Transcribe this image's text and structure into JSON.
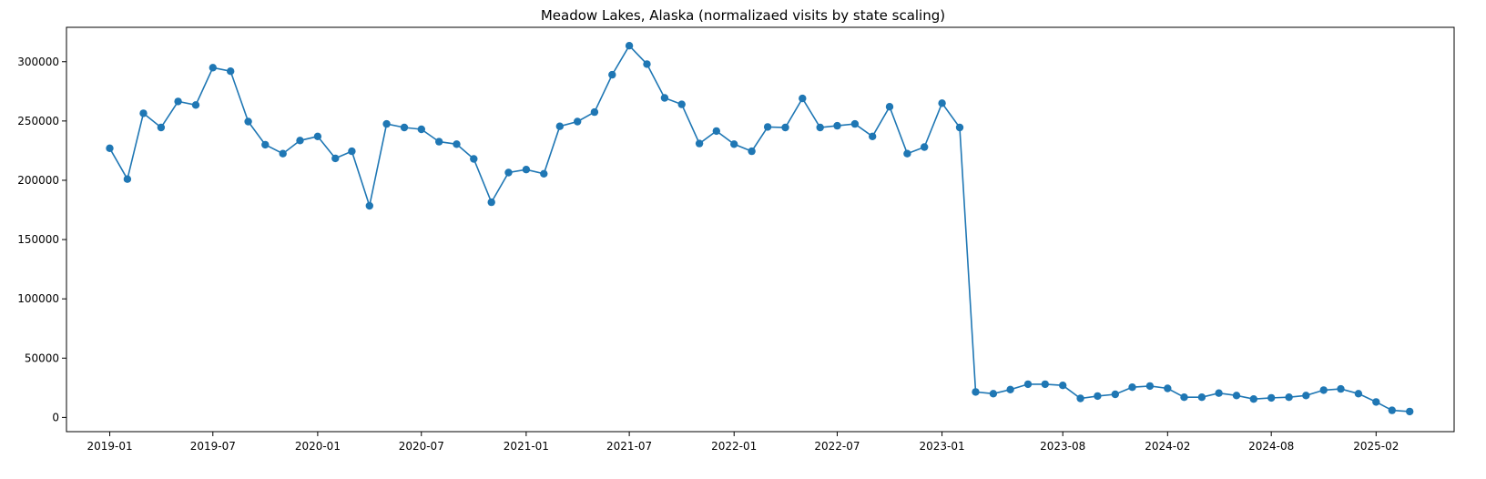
{
  "chart_data": {
    "type": "line",
    "title": "Meadow Lakes, Alaska (normalizaed visits by state scaling)",
    "xlabel": "",
    "ylabel": "",
    "grid": false,
    "legend": "none",
    "color": "#1f77b4",
    "x_ticks": [
      "2019-01",
      "2019-07",
      "2020-01",
      "2020-07",
      "2021-01",
      "2021-07",
      "2022-01",
      "2022-07",
      "2023-01",
      "2023-08",
      "2024-02",
      "2024-08",
      "2025-02"
    ],
    "y_ticks": [
      0,
      50000,
      100000,
      150000,
      200000,
      250000,
      300000
    ],
    "xlim": [
      "2018-10-17",
      "2025-06-18"
    ],
    "ylim": [
      -12000,
      329000
    ],
    "series": [
      {
        "x": [
          "2019-01-01",
          "2019-02-01",
          "2019-03-01",
          "2019-04-01",
          "2019-05-01",
          "2019-06-01",
          "2019-07-01",
          "2019-08-01",
          "2019-09-01",
          "2019-10-01",
          "2019-11-01",
          "2019-12-01",
          "2020-01-01",
          "2020-02-01",
          "2020-03-01",
          "2020-04-01",
          "2020-05-01",
          "2020-06-01",
          "2020-07-01",
          "2020-08-01",
          "2020-09-01",
          "2020-10-01",
          "2020-11-01",
          "2020-12-01",
          "2021-01-01",
          "2021-02-01",
          "2021-03-01",
          "2021-04-01",
          "2021-05-01",
          "2021-06-01",
          "2021-07-01",
          "2021-08-01",
          "2021-09-01",
          "2021-10-01",
          "2021-11-01",
          "2021-12-01",
          "2022-01-01",
          "2022-02-01",
          "2022-03-01",
          "2022-04-01",
          "2022-05-01",
          "2022-06-01",
          "2022-07-01",
          "2022-08-01",
          "2022-09-01",
          "2022-10-01",
          "2022-11-01",
          "2022-12-01",
          "2023-01-01",
          "2023-02-01",
          "2023-03-01",
          "2023-04-01",
          "2023-05-01",
          "2023-06-01",
          "2023-07-01",
          "2023-08-01",
          "2023-09-01",
          "2023-10-01",
          "2023-11-01",
          "2023-12-01",
          "2024-01-01",
          "2024-02-01",
          "2024-03-01",
          "2024-04-01",
          "2024-05-01",
          "2024-06-01",
          "2024-07-01",
          "2024-08-01",
          "2024-09-01",
          "2024-10-01",
          "2024-11-01",
          "2024-12-01",
          "2025-01-01",
          "2025-02-01",
          "2025-03-01",
          "2025-04-01"
        ],
        "y": [
          227000,
          201000,
          256500,
          244500,
          266500,
          263500,
          295000,
          292000,
          249500,
          230000,
          222500,
          233500,
          237000,
          218500,
          224500,
          178500,
          247500,
          244500,
          243000,
          232500,
          230500,
          218000,
          181500,
          206500,
          209000,
          205500,
          245500,
          249500,
          257500,
          289000,
          313500,
          298000,
          269500,
          264000,
          231000,
          241500,
          230500,
          224500,
          245000,
          244500,
          269000,
          244500,
          246000,
          247500,
          237000,
          262000,
          222500,
          228000,
          265000,
          244500,
          21500,
          20000,
          23500,
          28000,
          28000,
          27000,
          16000,
          18000,
          19500,
          25500,
          26500,
          24500,
          17000,
          17000,
          20500,
          18500,
          15500,
          16500,
          17000,
          18500,
          23000,
          24000,
          20000,
          13000,
          6000,
          5000
        ]
      }
    ]
  }
}
